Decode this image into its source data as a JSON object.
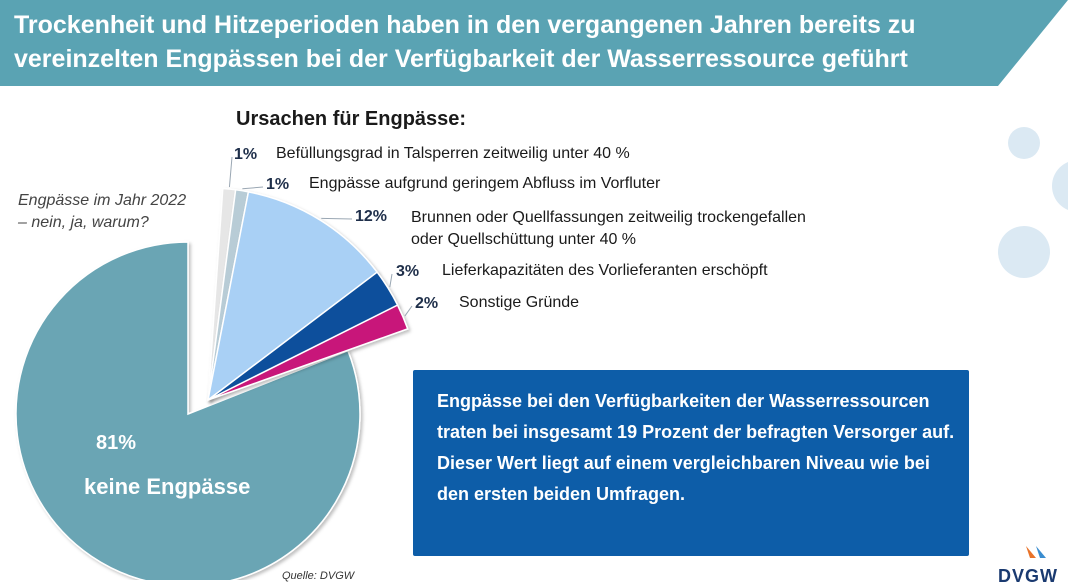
{
  "header": {
    "title": "Trockenheit und Hitzeperioden haben in den vergangenen Jahren bereits zu vereinzelten Engpässen bei der Verfügbarkeit der Wasserressource geführt"
  },
  "question": "Engpässe im Jahr 2022 – nein, ja, warum?",
  "causes_title": "Ursachen für Engpässe:",
  "info_text": "Engpässe bei den Verfügbarkeiten der Wasserressourcen traten bei insgesamt 19 Prozent der befragten Versorger auf. Dieser Wert liegt auf einem vergleichbaren Niveau wie bei den ersten beiden Umfragen.",
  "source": "Quelle: DVGW",
  "logo_text": "DVGW",
  "chart_data": {
    "type": "pie",
    "title": "",
    "main_slice": {
      "label": "keine Engpässe",
      "pct_label": "81%",
      "value": 81,
      "color": "#6aa5b4"
    },
    "slices": [
      {
        "pct_label": "1%",
        "label": "Befüllungsgrad in Talsperren zeitweilig unter 40 %",
        "value": 1,
        "color": "#e6e6e6"
      },
      {
        "pct_label": "1%",
        "label": "Engpässe aufgrund geringem Abfluss im Vorfluter",
        "value": 1,
        "color": "#b8ccd6"
      },
      {
        "pct_label": "12%",
        "label_line1": "Brunnen oder Quellfassungen zeitweilig trockengefallen",
        "label_line2": "oder Quellschüttung unter 40 %",
        "value": 12,
        "color": "#a9d0f5"
      },
      {
        "pct_label": "3%",
        "label": "Lieferkapazitäten des Vorlieferanten erschöpft",
        "value": 3,
        "color": "#0d4f9c"
      },
      {
        "pct_label": "2%",
        "label": "Sonstige Gründe",
        "value": 2,
        "color": "#c8197a"
      }
    ]
  }
}
